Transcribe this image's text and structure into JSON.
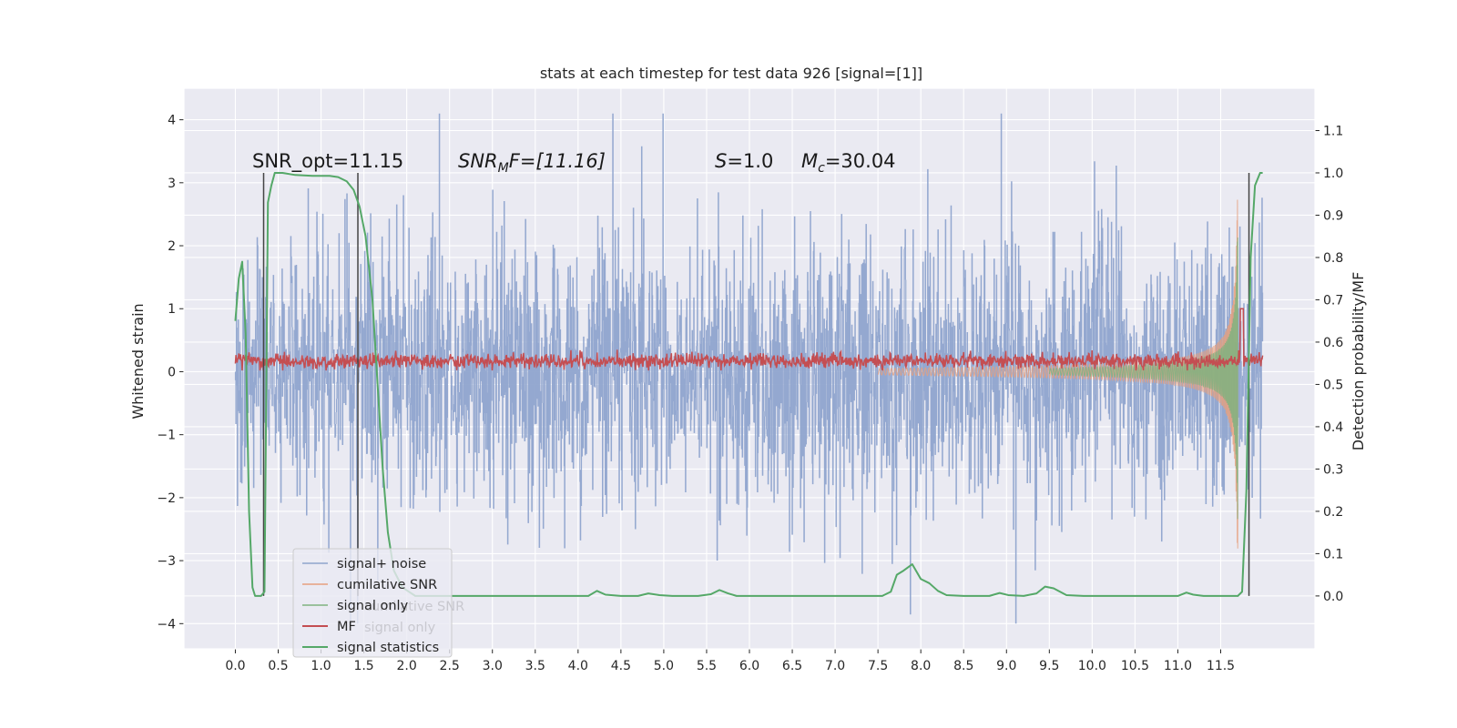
{
  "chart_data": {
    "type": "line",
    "title": "stats at each timestep for test data 926 [signal=[1]]",
    "ylabel": "Whitened strain",
    "y2label": "Detection probability/MF",
    "xlim": [
      -0.6,
      12.6
    ],
    "ylim": [
      -4.4,
      4.5
    ],
    "y2lim": [
      -0.125,
      1.2
    ],
    "x_ticks": [
      "0.0",
      "0.5",
      "1.0",
      "1.5",
      "2.0",
      "2.5",
      "3.0",
      "3.5",
      "4.0",
      "4.5",
      "5.0",
      "5.5",
      "6.0",
      "6.5",
      "7.0",
      "7.5",
      "8.0",
      "8.5",
      "9.0",
      "9.5",
      "10.0",
      "10.5",
      "11.0",
      "11.5"
    ],
    "y_ticks": [
      "4",
      "3",
      "2",
      "1",
      "0",
      "−1",
      "−2",
      "−3",
      "−4"
    ],
    "y2_ticks": [
      "1.1",
      "1.0",
      "0.9",
      "0.8",
      "0.7",
      "0.6",
      "0.5",
      "0.4",
      "0.3",
      "0.2",
      "0.1",
      "0.0"
    ],
    "grid": true,
    "annotations": {
      "snr_opt": "SNR_opt=11.15",
      "snr_mf_main": "SNR",
      "snr_mf_sub": "M",
      "snr_mf_rest": "F=[11.16]",
      "s_main": "S",
      "s_rest": "=1.0",
      "mc_main": "M",
      "mc_sub": "c",
      "mc_rest": "=30.04"
    },
    "legend_position": "lower-left",
    "legend": [
      "signal+ noise",
      "cumilative SNR",
      "signal only",
      "MF",
      "signal statistics"
    ],
    "legend_ghost": [
      "cumilative SNR",
      "signal only"
    ],
    "series": [
      {
        "name": "signal+ noise",
        "color": "#8fa4cd",
        "x_range": [
          0.0,
          11.99
        ],
        "y_range": [
          -4.0,
          4.1
        ],
        "typical_band": [
          -1.3,
          1.3
        ]
      },
      {
        "name": "cumilative SNR",
        "color": "#e6a07e",
        "x_range": [
          7.5,
          11.7
        ],
        "envelope_start": 0.05,
        "envelope_end": 3.65
      },
      {
        "name": "signal only",
        "color": "#7fb27f",
        "x_range": [
          9.5,
          11.7
        ],
        "envelope_start": 0.05,
        "envelope_end": 2.6
      },
      {
        "name": "MF",
        "color": "#c44e52",
        "x_range": [
          0.0,
          11.99
        ],
        "y_range": [
          0.02,
          0.35
        ],
        "spike_x": 11.75,
        "spike_y": 1.0
      },
      {
        "name": "signal statistics",
        "color": "#55a868",
        "axis": "right",
        "points": [
          [
            0.0,
            0.65
          ],
          [
            0.04,
            0.75
          ],
          [
            0.08,
            0.79
          ],
          [
            0.12,
            0.62
          ],
          [
            0.16,
            0.2
          ],
          [
            0.2,
            0.02
          ],
          [
            0.23,
            0.0
          ],
          [
            0.3,
            0.0
          ],
          [
            0.34,
            0.01
          ],
          [
            0.38,
            0.93
          ],
          [
            0.42,
            0.97
          ],
          [
            0.46,
            1.0
          ],
          [
            0.55,
            1.0
          ],
          [
            0.7,
            0.995
          ],
          [
            0.9,
            0.993
          ],
          [
            1.1,
            0.993
          ],
          [
            1.2,
            0.99
          ],
          [
            1.3,
            0.98
          ],
          [
            1.38,
            0.96
          ],
          [
            1.45,
            0.92
          ],
          [
            1.52,
            0.85
          ],
          [
            1.6,
            0.7
          ],
          [
            1.66,
            0.5
          ],
          [
            1.72,
            0.3
          ],
          [
            1.78,
            0.15
          ],
          [
            1.85,
            0.06
          ],
          [
            1.95,
            0.02
          ],
          [
            2.1,
            0.0
          ],
          [
            4.0,
            0.0
          ],
          [
            4.12,
            0.0
          ],
          [
            4.22,
            0.012
          ],
          [
            4.32,
            0.003
          ],
          [
            4.5,
            0.0
          ],
          [
            4.7,
            0.0
          ],
          [
            4.82,
            0.006
          ],
          [
            4.95,
            0.002
          ],
          [
            5.1,
            0.0
          ],
          [
            5.4,
            0.0
          ],
          [
            5.55,
            0.004
          ],
          [
            5.65,
            0.014
          ],
          [
            5.75,
            0.006
          ],
          [
            5.85,
            0.0
          ],
          [
            7.0,
            0.0
          ],
          [
            7.55,
            0.0
          ],
          [
            7.65,
            0.01
          ],
          [
            7.72,
            0.05
          ],
          [
            7.8,
            0.06
          ],
          [
            7.9,
            0.075
          ],
          [
            8.0,
            0.04
          ],
          [
            8.1,
            0.03
          ],
          [
            8.2,
            0.012
          ],
          [
            8.3,
            0.002
          ],
          [
            8.5,
            0.0
          ],
          [
            8.8,
            0.0
          ],
          [
            8.92,
            0.007
          ],
          [
            9.02,
            0.002
          ],
          [
            9.2,
            0.0
          ],
          [
            9.35,
            0.006
          ],
          [
            9.45,
            0.022
          ],
          [
            9.55,
            0.018
          ],
          [
            9.7,
            0.002
          ],
          [
            9.9,
            0.0
          ],
          [
            11.0,
            0.0
          ],
          [
            11.1,
            0.008
          ],
          [
            11.18,
            0.003
          ],
          [
            11.3,
            0.0
          ],
          [
            11.6,
            0.0
          ],
          [
            11.7,
            0.0
          ],
          [
            11.75,
            0.01
          ],
          [
            11.8,
            0.25
          ],
          [
            11.85,
            0.8
          ],
          [
            11.9,
            0.97
          ],
          [
            11.96,
            1.0
          ],
          [
            11.99,
            1.0
          ]
        ]
      }
    ],
    "vertical_lines": [
      0.33,
      1.43,
      11.83
    ]
  }
}
